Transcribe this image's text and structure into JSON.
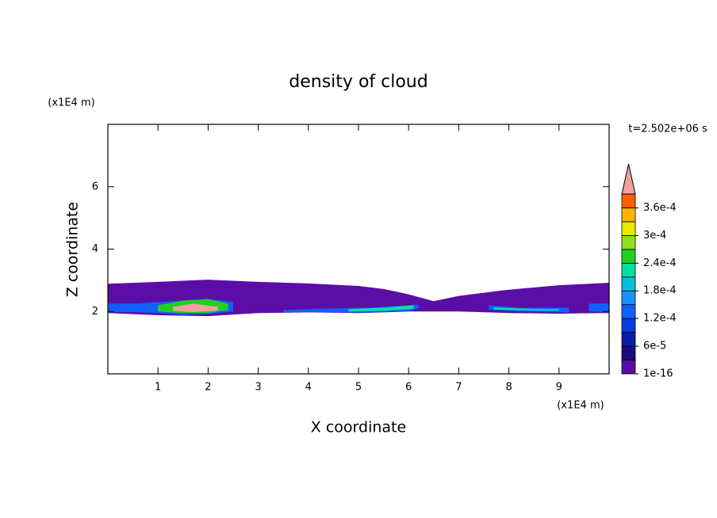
{
  "chart_data": {
    "type": "contour",
    "title": "density of cloud",
    "x_label": "X coordinate",
    "y_label": "Z coordinate",
    "x_unit": "(x1E4 m)",
    "y_unit": "(x1E4 m)",
    "time_label": "t=2.502e+06 s",
    "xlim": [
      0,
      10
    ],
    "ylim": [
      0,
      8
    ],
    "xticks": [
      1,
      2,
      3,
      4,
      5,
      6,
      7,
      8,
      9
    ],
    "yticks": [
      2,
      4,
      6
    ],
    "levels": [
      1e-16,
      3e-05,
      6e-05,
      9e-05,
      0.00012,
      0.00015,
      0.00018,
      0.00021,
      0.00024,
      0.00027,
      0.0003,
      0.00033,
      0.00036,
      0.00039
    ],
    "level_colors": [
      "#5a0ea6",
      "#1b0a7a",
      "#0b1aa8",
      "#0a3ae0",
      "#1060ff",
      "#1e90ff",
      "#00c0e0",
      "#00e0a0",
      "#20d020",
      "#90e020",
      "#e8e800",
      "#ffb000",
      "#ff6000"
    ],
    "over_color": "#f0a0a0",
    "colorbar_ticks": [
      {
        "value": 1e-16,
        "label": "1e-16"
      },
      {
        "value": 6e-05,
        "label": "6e-5"
      },
      {
        "value": 0.00012,
        "label": "1.2e-4"
      },
      {
        "value": 0.00018,
        "label": "1.8e-4"
      },
      {
        "value": 0.00024,
        "label": "2.4e-4"
      },
      {
        "value": 0.0003,
        "label": "3e-4"
      },
      {
        "value": 0.00036,
        "label": "3.6e-4"
      }
    ],
    "regions": [
      {
        "level": 1e-16,
        "x": [
          0,
          1,
          2,
          3,
          4,
          5,
          5.5,
          6,
          6.5,
          7,
          8,
          9,
          10
        ],
        "top": [
          2.89,
          2.95,
          3.02,
          2.95,
          2.9,
          2.82,
          2.72,
          2.55,
          2.33,
          2.5,
          2.7,
          2.84,
          2.92
        ],
        "base": [
          1.95,
          1.88,
          1.85,
          1.95,
          1.97,
          1.95,
          1.97,
          2.0,
          2.0,
          2.0,
          1.95,
          1.93,
          1.95
        ]
      },
      {
        "level": 0.00012,
        "x": [
          0,
          0.5,
          1,
          1.5,
          2,
          2.5
        ],
        "top": [
          2.25,
          2.25,
          2.3,
          2.35,
          2.4,
          2.3
        ],
        "base": [
          1.98,
          1.98,
          1.95,
          1.9,
          1.92,
          2.0
        ]
      },
      {
        "level": 0.00024,
        "x": [
          1,
          1.5,
          2,
          2.4
        ],
        "top": [
          2.2,
          2.35,
          2.4,
          2.25
        ],
        "base": [
          2.0,
          1.95,
          1.95,
          2.05
        ]
      },
      {
        "level": 0.0004,
        "x": [
          1.3,
          1.7,
          2.2
        ],
        "top": [
          2.15,
          2.25,
          2.15
        ],
        "base": [
          2.02,
          1.98,
          2.03
        ]
      },
      {
        "level": 0.00012,
        "x": [
          3.5,
          4.5,
          5.2,
          6,
          6.2
        ],
        "top": [
          2.05,
          2.1,
          2.12,
          2.2,
          2.22
        ],
        "base": [
          1.98,
          1.97,
          1.96,
          2.02,
          2.1
        ]
      },
      {
        "level": 0.00021,
        "x": [
          4.8,
          5.5,
          6.1
        ],
        "top": [
          2.08,
          2.12,
          2.2
        ],
        "base": [
          2.0,
          2.02,
          2.08
        ]
      },
      {
        "level": 0.00012,
        "x": [
          7.6,
          8.2,
          9.2
        ],
        "top": [
          2.2,
          2.12,
          2.12
        ],
        "base": [
          2.05,
          2.0,
          1.97
        ]
      },
      {
        "level": 0.00021,
        "x": [
          7.7,
          8.5,
          9
        ],
        "top": [
          2.13,
          2.08,
          2.08
        ],
        "base": [
          2.06,
          2.03,
          2.03
        ]
      },
      {
        "level": 0.00012,
        "x": [
          9.6,
          10
        ],
        "top": [
          2.25,
          2.25
        ],
        "base": [
          2.0,
          1.98
        ]
      }
    ]
  }
}
